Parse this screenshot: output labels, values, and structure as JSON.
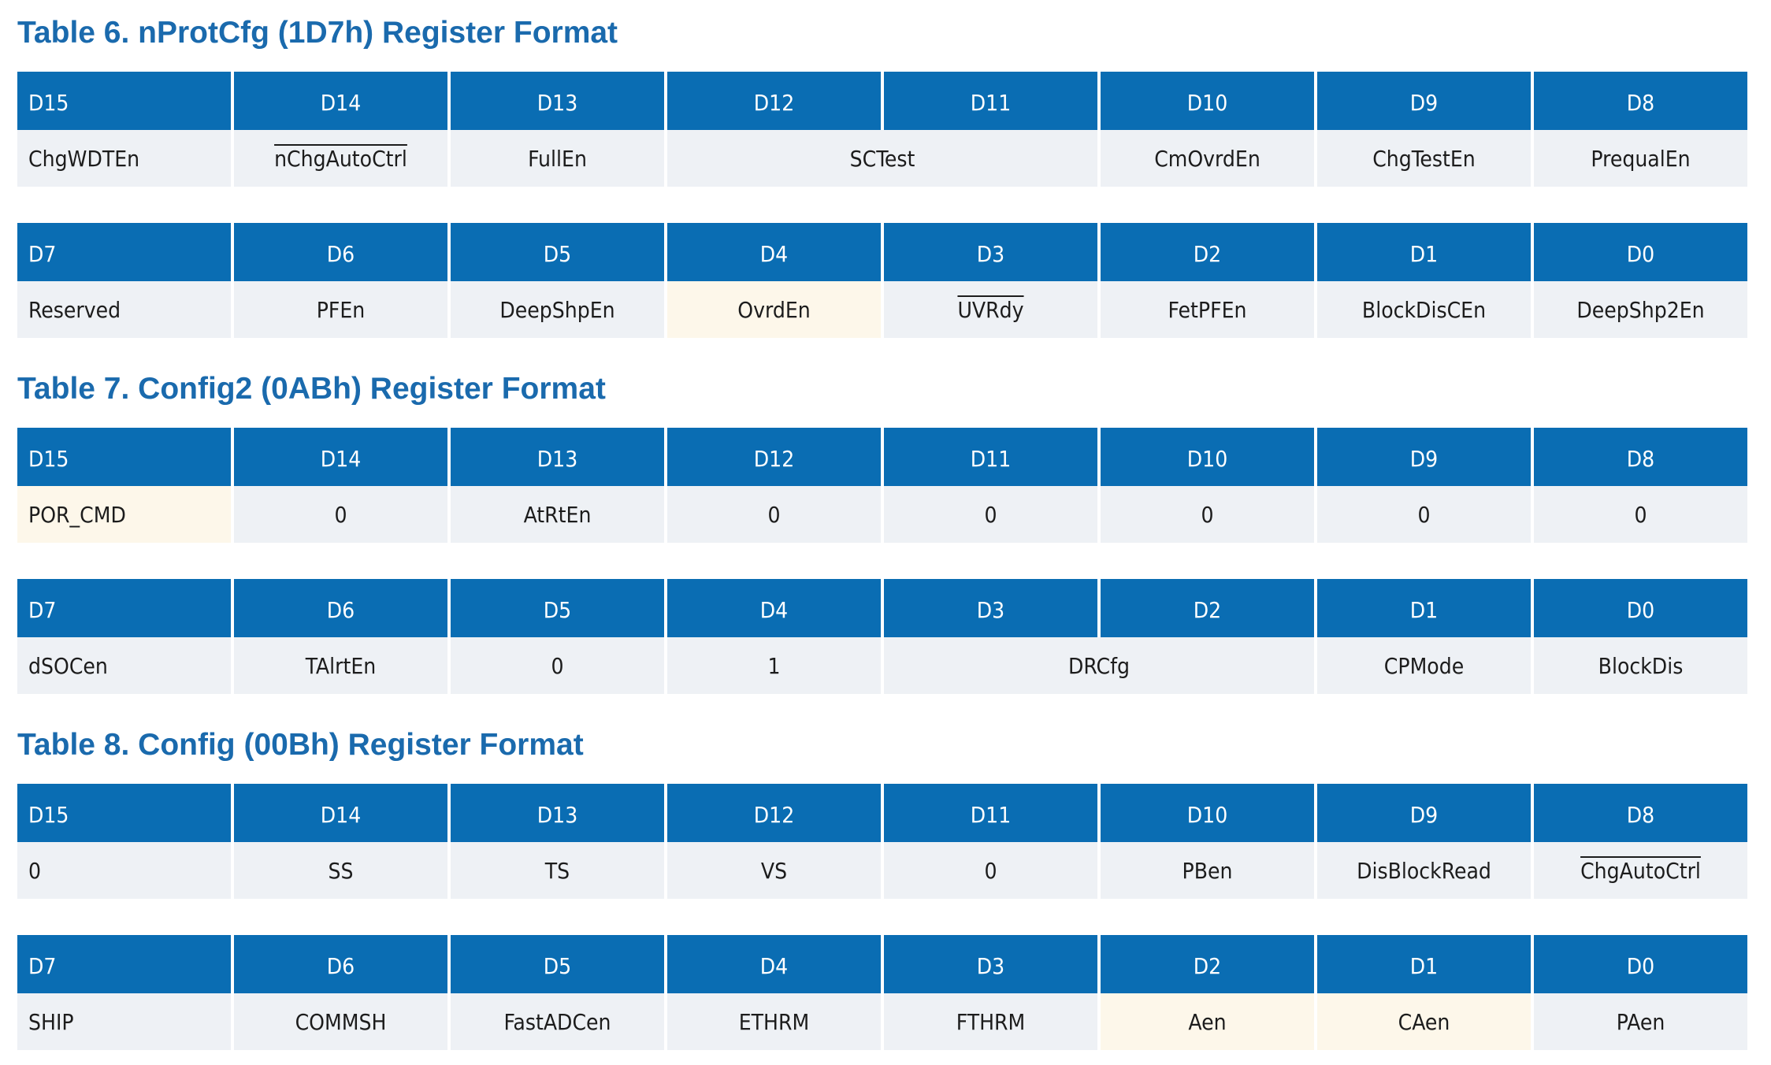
{
  "tables": [
    {
      "title": "Table 6. nProtCfg (1D7h) Register Format",
      "rows": [
        {
          "headers": [
            "D15",
            "D14",
            "D13",
            "D12",
            "D11",
            "D10",
            "D9",
            "D8"
          ],
          "cells": [
            {
              "text": "ChgWDTEn",
              "span": 1
            },
            {
              "text": "nChgAutoCtrl",
              "span": 1,
              "overline": true
            },
            {
              "text": "FullEn",
              "span": 1
            },
            {
              "text": "SCTest",
              "span": 2
            },
            {
              "text": "CmOvrdEn",
              "span": 1
            },
            {
              "text": "ChgTestEn",
              "span": 1
            },
            {
              "text": "PrequalEn",
              "span": 1
            }
          ]
        },
        {
          "headers": [
            "D7",
            "D6",
            "D5",
            "D4",
            "D3",
            "D2",
            "D1",
            "D0"
          ],
          "cells": [
            {
              "text": "Reserved",
              "span": 1
            },
            {
              "text": "PFEn",
              "span": 1
            },
            {
              "text": "DeepShpEn",
              "span": 1
            },
            {
              "text": "OvrdEn",
              "span": 1,
              "highlight": true
            },
            {
              "text": "UVRdy",
              "span": 1,
              "overline": true
            },
            {
              "text": "FetPFEn",
              "span": 1
            },
            {
              "text": "BlockDisCEn",
              "span": 1
            },
            {
              "text": "DeepShp2En",
              "span": 1
            }
          ]
        }
      ]
    },
    {
      "title": "Table 7. Config2 (0ABh) Register Format",
      "rows": [
        {
          "headers": [
            "D15",
            "D14",
            "D13",
            "D12",
            "D11",
            "D10",
            "D9",
            "D8"
          ],
          "cells": [
            {
              "text": "POR_CMD",
              "span": 1,
              "highlight": true
            },
            {
              "text": "0",
              "span": 1
            },
            {
              "text": "AtRtEn",
              "span": 1
            },
            {
              "text": "0",
              "span": 1
            },
            {
              "text": "0",
              "span": 1
            },
            {
              "text": "0",
              "span": 1
            },
            {
              "text": "0",
              "span": 1
            },
            {
              "text": "0",
              "span": 1
            }
          ]
        },
        {
          "headers": [
            "D7",
            "D6",
            "D5",
            "D4",
            "D3",
            "D2",
            "D1",
            "D0"
          ],
          "cells": [
            {
              "text": "dSOCen",
              "span": 1
            },
            {
              "text": "TAlrtEn",
              "span": 1
            },
            {
              "text": "0",
              "span": 1
            },
            {
              "text": "1",
              "span": 1
            },
            {
              "text": "DRCfg",
              "span": 2
            },
            {
              "text": "CPMode",
              "span": 1
            },
            {
              "text": "BlockDis",
              "span": 1
            }
          ]
        }
      ]
    },
    {
      "title": "Table 8. Config (00Bh) Register Format",
      "rows": [
        {
          "headers": [
            "D15",
            "D14",
            "D13",
            "D12",
            "D11",
            "D10",
            "D9",
            "D8"
          ],
          "cells": [
            {
              "text": "0",
              "span": 1
            },
            {
              "text": "SS",
              "span": 1
            },
            {
              "text": "TS",
              "span": 1
            },
            {
              "text": "VS",
              "span": 1
            },
            {
              "text": "0",
              "span": 1
            },
            {
              "text": "PBen",
              "span": 1
            },
            {
              "text": "DisBlockRead",
              "span": 1
            },
            {
              "text": "ChgAutoCtrl",
              "span": 1,
              "overline": true
            }
          ]
        },
        {
          "headers": [
            "D7",
            "D6",
            "D5",
            "D4",
            "D3",
            "D2",
            "D1",
            "D0"
          ],
          "cells": [
            {
              "text": "SHIP",
              "span": 1
            },
            {
              "text": "COMMSH",
              "span": 1
            },
            {
              "text": "FastADCen",
              "span": 1
            },
            {
              "text": "ETHRM",
              "span": 1
            },
            {
              "text": "FTHRM",
              "span": 1
            },
            {
              "text": "Aen",
              "span": 1,
              "highlight": true
            },
            {
              "text": "CAen",
              "span": 1,
              "highlight": true
            },
            {
              "text": "PAen",
              "span": 1
            }
          ]
        }
      ]
    }
  ]
}
